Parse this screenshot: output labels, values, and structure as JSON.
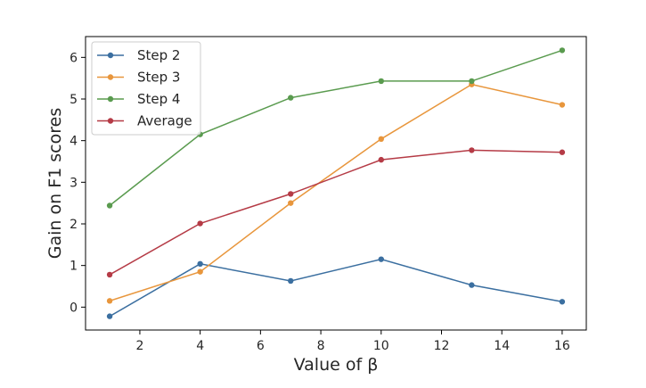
{
  "chart_data": {
    "type": "line",
    "x": [
      1,
      4,
      7,
      10,
      13,
      16
    ],
    "series": [
      {
        "name": "Step 2",
        "color": "#3b6fa0",
        "values": [
          -0.22,
          1.04,
          0.63,
          1.15,
          0.53,
          0.13
        ]
      },
      {
        "name": "Step 3",
        "color": "#e8963c",
        "values": [
          0.15,
          0.85,
          2.5,
          4.04,
          5.35,
          4.86
        ]
      },
      {
        "name": "Step 4",
        "color": "#5a9b4f",
        "values": [
          2.44,
          4.15,
          5.03,
          5.43,
          5.43,
          6.17
        ]
      },
      {
        "name": "Average",
        "color": "#b53b46",
        "values": [
          0.78,
          2.01,
          2.72,
          3.54,
          3.77,
          3.72
        ]
      }
    ],
    "xlabel": "Value of β",
    "ylabel": "Gain on F1 scores",
    "xlim": [
      0.2,
      16.8
    ],
    "ylim": [
      -0.55,
      6.5
    ],
    "xticks": [
      2,
      4,
      6,
      8,
      10,
      12,
      14,
      16
    ],
    "yticks": [
      0,
      1,
      2,
      3,
      4,
      5,
      6
    ],
    "grid": false,
    "legend_position": "top-left"
  }
}
